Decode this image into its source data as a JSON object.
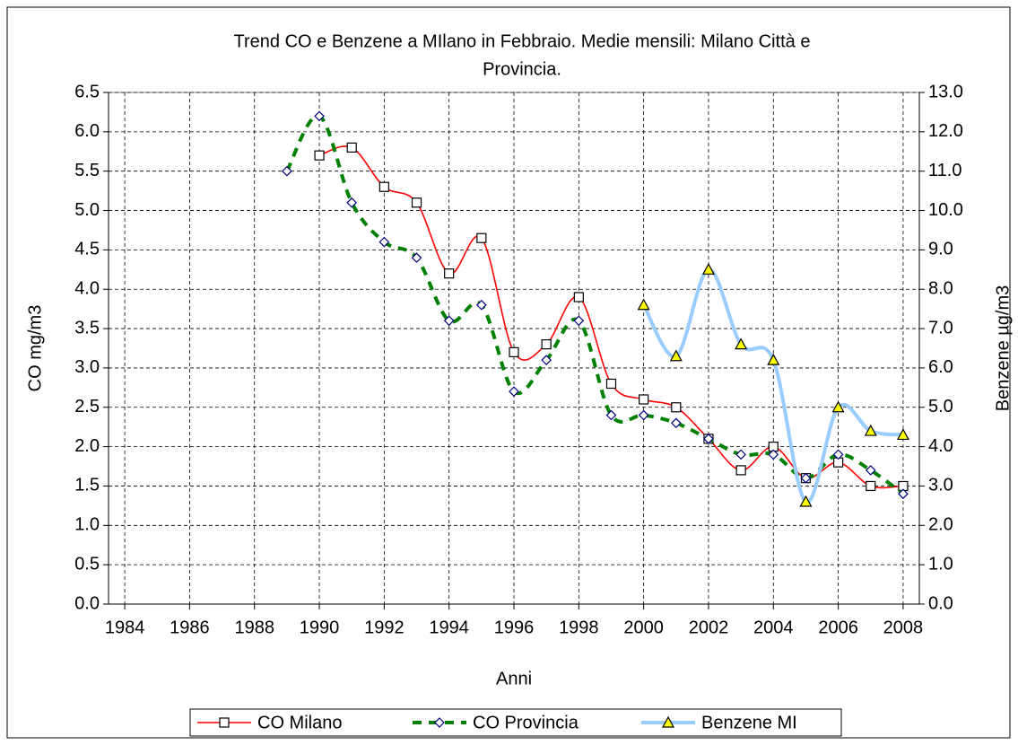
{
  "chart_data": {
    "type": "line",
    "title": [
      "Trend  CO e Benzene a MIlano in Febbraio. Medie mensili: Milano Città e",
      "Provincia."
    ],
    "xlabel": "Anni",
    "ylabel": "CO mg/m3",
    "y2label": "Benzene  µg/m3",
    "xlim": [
      1983.5,
      2008.5
    ],
    "xticks": [
      1984,
      1986,
      1988,
      1990,
      1992,
      1994,
      1996,
      1998,
      2000,
      2002,
      2004,
      2006,
      2008
    ],
    "ylim": [
      0,
      6.5
    ],
    "yticks": [
      {
        "value": 0,
        "label": "0.0"
      },
      {
        "value": 0.5,
        "label": "0.5"
      },
      {
        "value": 1,
        "label": "1.0"
      },
      {
        "value": 1.5,
        "label": "1.5"
      },
      {
        "value": 2,
        "label": "2.0"
      },
      {
        "value": 2.5,
        "label": "2.5"
      },
      {
        "value": 3,
        "label": "3.0"
      },
      {
        "value": 3.5,
        "label": "3.5"
      },
      {
        "value": 4,
        "label": "4.0"
      },
      {
        "value": 4.5,
        "label": "4.5"
      },
      {
        "value": 5,
        "label": "5.0"
      },
      {
        "value": 5.5,
        "label": "5.5"
      },
      {
        "value": 6,
        "label": "6.0"
      },
      {
        "value": 6.5,
        "label": "6.5"
      }
    ],
    "y2lim": [
      0,
      13
    ],
    "y2ticks": [
      {
        "value": 0,
        "label": "0.0"
      },
      {
        "value": 1,
        "label": "1.0"
      },
      {
        "value": 2,
        "label": "2.0"
      },
      {
        "value": 3,
        "label": "3.0"
      },
      {
        "value": 4,
        "label": "4.0"
      },
      {
        "value": 5,
        "label": "5.0"
      },
      {
        "value": 6,
        "label": "6.0"
      },
      {
        "value": 7,
        "label": "7.0"
      },
      {
        "value": 8,
        "label": "8.0"
      },
      {
        "value": 9,
        "label": "9.0"
      },
      {
        "value": 10,
        "label": "10.0"
      },
      {
        "value": 11,
        "label": "11.0"
      },
      {
        "value": 12,
        "label": "12.0"
      },
      {
        "value": 13,
        "label": "13.0"
      }
    ],
    "grid": true,
    "legend": "bottom",
    "series": [
      {
        "name": "CO Milano",
        "color": "#ff0000",
        "marker": "square",
        "x": [
          1990,
          1991,
          1992,
          1993,
          1994,
          1995,
          1996,
          1997,
          1998,
          1999,
          2000,
          2001,
          2002,
          2003,
          2004,
          2005,
          2006,
          2007,
          2008
        ],
        "values": [
          5.7,
          5.8,
          5.3,
          5.1,
          4.2,
          4.65,
          3.2,
          3.3,
          3.9,
          2.8,
          2.6,
          2.5,
          2.1,
          1.7,
          2.0,
          1.6,
          1.8,
          1.5,
          1.5
        ]
      },
      {
        "name": "CO Provincia",
        "color": "#008000",
        "marker": "diamond",
        "dashed": true,
        "x": [
          1989,
          1990,
          1991,
          1992,
          1993,
          1994,
          1995,
          1996,
          1997,
          1998,
          1999,
          2000,
          2001,
          2002,
          2003,
          2004,
          2005,
          2006,
          2007,
          2008
        ],
        "values": [
          5.5,
          6.2,
          5.1,
          4.6,
          4.4,
          3.6,
          3.8,
          2.7,
          3.1,
          3.6,
          2.4,
          2.4,
          2.3,
          2.1,
          1.9,
          1.9,
          1.6,
          1.9,
          1.7,
          1.4
        ]
      },
      {
        "name": "Benzene MI",
        "color": "#99ccff",
        "marker": "triangle",
        "axis": "y2",
        "x": [
          2000,
          2001,
          2002,
          2003,
          2004,
          2005,
          2006,
          2007,
          2008
        ],
        "values": [
          7.6,
          6.3,
          8.5,
          6.6,
          6.2,
          2.6,
          5.0,
          4.4,
          4.3
        ]
      }
    ]
  }
}
